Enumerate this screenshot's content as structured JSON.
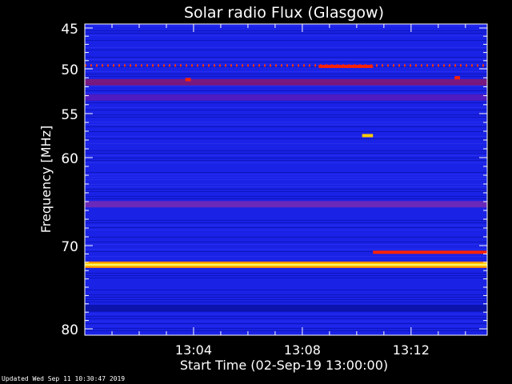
{
  "chart_data": {
    "type": "heatmap",
    "title": "Solar radio Flux (Glasgow)",
    "xlabel": "Start Time (02-Sep-19 13:00:00)",
    "ylabel": "Frequency [MHz]",
    "x_unit": "minutes after 13:00:00",
    "xlim": [
      0,
      14.8
    ],
    "ylim": [
      45,
      80
    ],
    "y_inverted": true,
    "x_ticks": [
      {
        "value": 4,
        "label": "13:04"
      },
      {
        "value": 8,
        "label": "13:08"
      },
      {
        "value": 12,
        "label": "13:12"
      }
    ],
    "y_ticks": [
      {
        "value": 45,
        "label": "45"
      },
      {
        "value": 50,
        "label": "50"
      },
      {
        "value": 55,
        "label": "55"
      },
      {
        "value": 60,
        "label": "60"
      },
      {
        "value": 70,
        "label": "70"
      },
      {
        "value": 80,
        "label": "80"
      }
    ],
    "background_color": "#1a22e6",
    "colormap": [
      "#000080",
      "#1a22e6",
      "#6a1fb0",
      "#c01060",
      "#ff2000",
      "#ffd000",
      "#ffffc0"
    ],
    "continuous_bands": [
      {
        "freq": 49.6,
        "color": "#ff3300",
        "style": "dotted"
      },
      {
        "freq": 51.5,
        "color": "#8a1870",
        "style": "solid"
      },
      {
        "freq": 53.2,
        "color": "#5a1ab8",
        "style": "solid"
      },
      {
        "freq": 65.3,
        "color": "#7a2ab0",
        "style": "solid"
      },
      {
        "freq": 72.3,
        "color": "#ffd800",
        "style": "solid"
      },
      {
        "freq": 77.5,
        "color": "#0a12a0",
        "style": "solid"
      }
    ],
    "features": [
      {
        "t_start": 8.6,
        "t_end": 10.6,
        "freq": 49.7,
        "color": "#ff2200"
      },
      {
        "t_start": 10.2,
        "t_end": 10.6,
        "freq": 57.5,
        "color": "#ffcc00"
      },
      {
        "t_start": 10.6,
        "t_end": 14.8,
        "freq": 70.8,
        "color": "#ff2200"
      },
      {
        "t_start": 3.7,
        "t_end": 3.9,
        "freq": 51.2,
        "color": "#ff2200"
      },
      {
        "t_start": 13.6,
        "t_end": 13.8,
        "freq": 51.0,
        "color": "#ff2200"
      }
    ]
  },
  "footer": {
    "updated_text": "Updated Wed Sep 11 10:30:47 2019"
  }
}
